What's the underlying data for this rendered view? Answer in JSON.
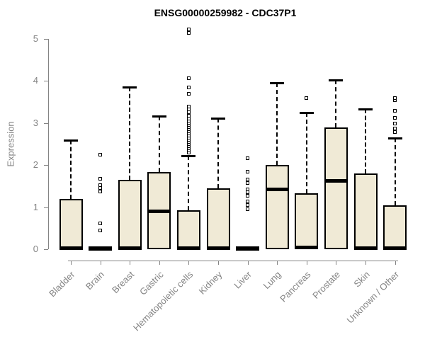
{
  "chart_data": {
    "type": "boxplot",
    "title": "ENSG00000259982 - CDC37P1",
    "ylabel": "Expression",
    "xlabel": "",
    "ylim": [
      0,
      5
    ],
    "yticks": [
      0,
      1,
      2,
      3,
      4,
      5
    ],
    "grid": false,
    "legend": "none",
    "categories": [
      "Bladder",
      "Brain",
      "Breast",
      "Gastric",
      "Hematopoietic cells",
      "Kidney",
      "Liver",
      "Lung",
      "Pancreas",
      "Prostate",
      "Skin",
      "Unknown / Other"
    ],
    "series": [
      {
        "category": "Bladder",
        "low": 0,
        "q1": 0,
        "median": 0.03,
        "q3": 1.2,
        "high": 2.6,
        "outliers": []
      },
      {
        "category": "Brain",
        "low": 0,
        "q1": 0,
        "median": 0.02,
        "q3": 0.04,
        "high": 0.04,
        "outliers": [
          0.45,
          0.62,
          1.38,
          1.45,
          1.52,
          1.67,
          2.25
        ]
      },
      {
        "category": "Breast",
        "low": 0,
        "q1": 0,
        "median": 0.03,
        "q3": 1.65,
        "high": 3.85,
        "outliers": []
      },
      {
        "category": "Gastric",
        "low": 0,
        "q1": 0,
        "median": 0.9,
        "q3": 1.83,
        "high": 3.17,
        "outliers": []
      },
      {
        "category": "Hematopoietic cells",
        "low": 0,
        "q1": 0,
        "median": 0.03,
        "q3": 0.92,
        "high": 2.22,
        "outliers": [
          2.3,
          2.35,
          2.4,
          2.45,
          2.5,
          2.55,
          2.6,
          2.65,
          2.7,
          2.75,
          2.8,
          2.85,
          2.9,
          2.95,
          3.0,
          3.05,
          3.1,
          3.18,
          3.25,
          3.32,
          3.4,
          3.7,
          3.85,
          4.07,
          5.15,
          5.22
        ]
      },
      {
        "category": "Kidney",
        "low": 0,
        "q1": 0,
        "median": 0.03,
        "q3": 1.45,
        "high": 3.12,
        "outliers": []
      },
      {
        "category": "Liver",
        "low": 0,
        "q1": 0,
        "median": 0.02,
        "q3": 0.04,
        "high": 0.04,
        "outliers": [
          0.95,
          1.05,
          1.13,
          1.27,
          1.35,
          1.43,
          1.58,
          1.65,
          1.85,
          2.17
        ]
      },
      {
        "category": "Lung",
        "low": 0,
        "q1": 0,
        "median": 1.42,
        "q3": 2.0,
        "high": 3.95,
        "outliers": []
      },
      {
        "category": "Pancreas",
        "low": 0,
        "q1": 0,
        "median": 0.04,
        "q3": 1.33,
        "high": 3.25,
        "outliers": [
          3.6
        ]
      },
      {
        "category": "Prostate",
        "low": 0,
        "q1": 0,
        "median": 1.62,
        "q3": 2.9,
        "high": 4.02,
        "outliers": []
      },
      {
        "category": "Skin",
        "low": 0,
        "q1": 0,
        "median": 0.03,
        "q3": 1.8,
        "high": 3.33,
        "outliers": []
      },
      {
        "category": "Unknown / Other",
        "low": 0,
        "q1": 0,
        "median": 0.03,
        "q3": 1.05,
        "high": 2.65,
        "outliers": [
          2.78,
          2.87,
          2.98,
          3.12,
          3.29,
          3.55,
          3.6
        ]
      }
    ],
    "colors": {
      "box_fill": "#F0EAD6",
      "box_border": "#000000",
      "whisker": "#000000",
      "axis": "#848484",
      "tick_label": "#848484",
      "title": "#000000"
    }
  }
}
